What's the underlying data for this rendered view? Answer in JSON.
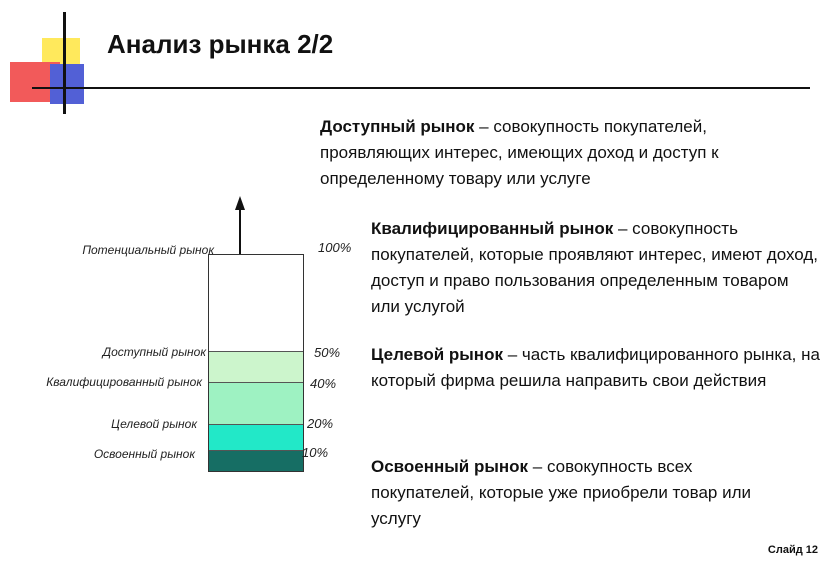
{
  "slide": {
    "title": "Анализ рынка 2/2",
    "footer": "Слайд 12"
  },
  "definitions": [
    {
      "term": "Доступный рынок",
      "text": " – совокупность покупателей, проявляющих интерес, имеющих доход и доступ к определенному товару или услуге"
    },
    {
      "term": "Квалифицированный рынок",
      "text": " – совокупность покупателей, которые проявляют интерес, имеют доход, доступ и право пользования определенным товаром или услугой"
    },
    {
      "term": "Целевой рынок",
      "text": " – часть квалифицированного рынка, на который фирма решила направить свои действия"
    },
    {
      "term": "Освоенный рынок",
      "text": " – совокупность всех покупателей, которые уже приобрели товар или услугу"
    }
  ],
  "diagram": {
    "levels": [
      {
        "label": "Потенциальный рынок",
        "percent": "100%",
        "share": 1.0,
        "color": "#ffffff"
      },
      {
        "label": "Доступный рынок",
        "percent": "50%",
        "share": 0.5,
        "color": "#ccf5cc"
      },
      {
        "label": "Квалифицированный рынок",
        "percent": "40%",
        "share": 0.4,
        "color": "#9ef2c2"
      },
      {
        "label": "Целевой рынок",
        "percent": "20%",
        "share": 0.2,
        "color": "#22e8c8"
      },
      {
        "label": "Освоенный рынок",
        "percent": "10%",
        "share": 0.1,
        "color": "#166e64"
      }
    ]
  }
}
